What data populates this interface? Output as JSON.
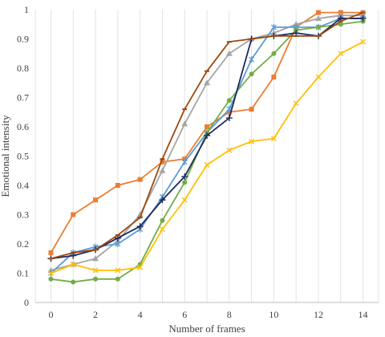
{
  "chart_data": {
    "type": "line",
    "title": "",
    "xlabel": "Number of frames",
    "ylabel": "Emotional intensity",
    "xlim": [
      -0.7,
      14.7
    ],
    "ylim": [
      0,
      1
    ],
    "x_ticks": [
      0,
      2,
      4,
      6,
      8,
      10,
      12,
      14
    ],
    "y_ticks": [
      0,
      0.1,
      0.2,
      0.3,
      0.4,
      0.5,
      0.6,
      0.7,
      0.8,
      0.9,
      1
    ],
    "grid": "vertical",
    "legend": "none",
    "x": [
      0,
      1,
      2,
      3,
      4,
      5,
      6,
      7,
      8,
      9,
      10,
      11,
      12,
      13,
      14
    ],
    "series": [
      {
        "color": "#ed7d31",
        "marker": "square",
        "values": [
          0.17,
          0.3,
          0.35,
          0.4,
          0.42,
          0.48,
          0.49,
          0.6,
          0.65,
          0.66,
          0.77,
          0.94,
          0.99,
          0.99,
          0.99
        ]
      },
      {
        "color": "#a5a5a5",
        "marker": "triangle",
        "values": [
          0.11,
          0.13,
          0.15,
          0.21,
          0.3,
          0.45,
          0.61,
          0.75,
          0.85,
          0.9,
          0.92,
          0.95,
          0.97,
          0.98,
          0.98
        ]
      },
      {
        "color": "#5b9bd5",
        "marker": "star",
        "values": [
          0.1,
          0.17,
          0.19,
          0.2,
          0.25,
          0.36,
          0.48,
          0.58,
          0.66,
          0.83,
          0.94,
          0.94,
          0.94,
          0.97,
          0.97
        ]
      },
      {
        "color": "#70ad47",
        "marker": "circle",
        "values": [
          0.08,
          0.07,
          0.08,
          0.08,
          0.13,
          0.28,
          0.41,
          0.58,
          0.69,
          0.78,
          0.85,
          0.93,
          0.94,
          0.95,
          0.96
        ]
      },
      {
        "color": "#ffc000",
        "marker": "x",
        "values": [
          0.1,
          0.13,
          0.11,
          0.11,
          0.12,
          0.25,
          0.35,
          0.47,
          0.52,
          0.55,
          0.56,
          0.68,
          0.77,
          0.85,
          0.89
        ]
      },
      {
        "color": "#1f2a5e",
        "marker": "plus",
        "values": [
          0.15,
          0.16,
          0.18,
          0.22,
          0.26,
          0.35,
          0.43,
          0.57,
          0.63,
          0.9,
          0.91,
          0.92,
          0.91,
          0.97,
          0.97
        ]
      },
      {
        "color": "#9e480e",
        "marker": "dash",
        "values": [
          0.15,
          0.17,
          0.18,
          0.23,
          0.29,
          0.49,
          0.66,
          0.79,
          0.89,
          0.9,
          0.91,
          0.91,
          0.91,
          0.96,
          0.99
        ]
      }
    ]
  }
}
